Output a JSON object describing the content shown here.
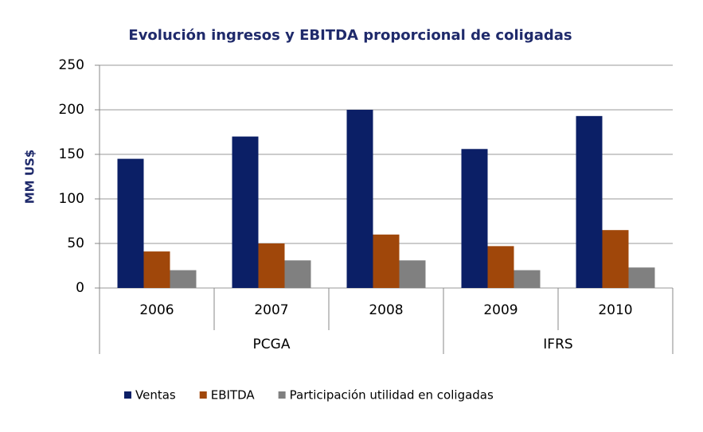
{
  "chart_data": {
    "type": "bar",
    "title": "Evolución ingresos y EBITDA proporcional de coligadas",
    "y_label": "MM US$",
    "categories": [
      "2006",
      "2007",
      "2008",
      "2009",
      "2010"
    ],
    "category_groups": [
      "PCGA",
      "PCGA",
      "PCGA",
      "IFRS",
      "IFRS"
    ],
    "series": [
      {
        "name": "Ventas",
        "color": "#0b1f66",
        "values": [
          145,
          170,
          200,
          156,
          193
        ]
      },
      {
        "name": "EBITDA",
        "color": "#a0470a",
        "values": [
          41,
          50,
          60,
          47,
          65
        ]
      },
      {
        "name": "Participación utilidad en coligadas",
        "color": "#808080",
        "values": [
          20,
          31,
          31,
          20,
          23
        ]
      }
    ],
    "ylim": [
      0,
      250
    ],
    "yticks": [
      0,
      50,
      100,
      150,
      200,
      250
    ],
    "grid": true
  }
}
